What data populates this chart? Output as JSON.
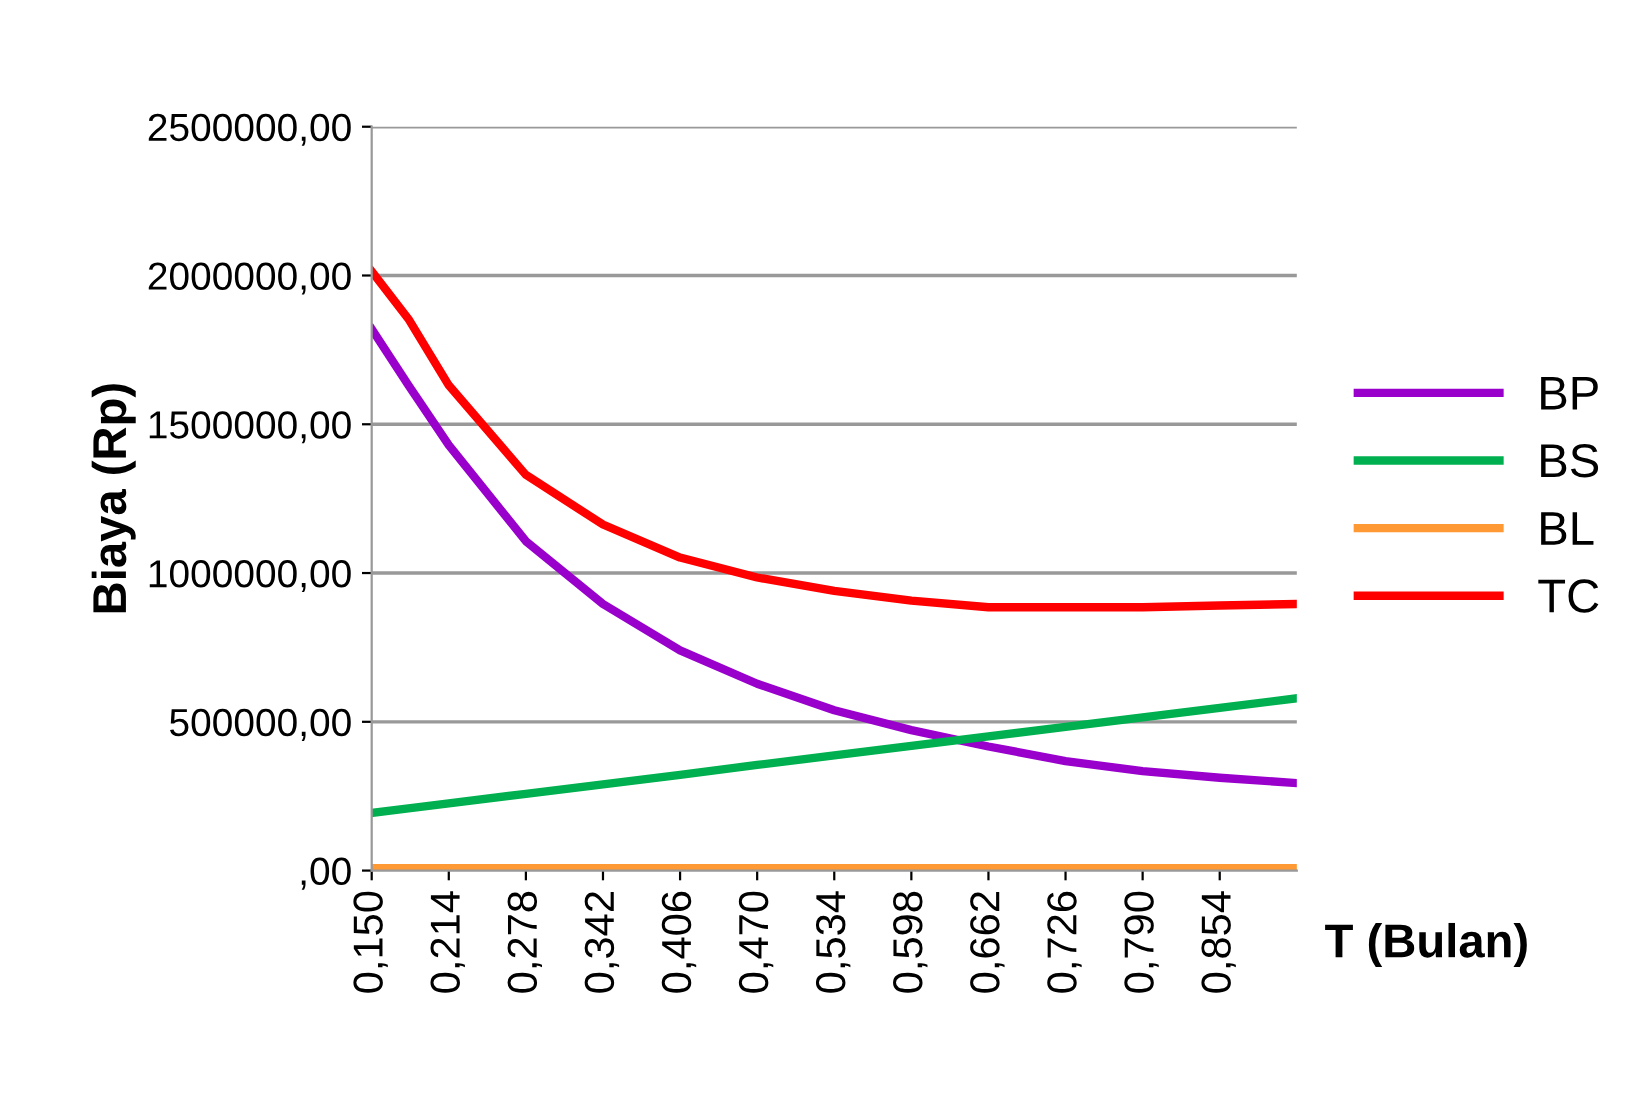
{
  "chart_data": {
    "type": "line",
    "ylabel": "Biaya (Rp)",
    "xlabel": "T (Bulan)",
    "x": [
      0.15,
      0.1805,
      0.214,
      0.278,
      0.342,
      0.406,
      0.47,
      0.534,
      0.598,
      0.662,
      0.726,
      0.79,
      0.854,
      0.918
    ],
    "series": [
      {
        "name": "BP",
        "color": "#9900cc",
        "values": [
          1820000,
          1631000,
          1430000,
          1107000,
          896000,
          740000,
          628000,
          539000,
          472000,
          417000,
          368000,
          334000,
          312000,
          294000
        ]
      },
      {
        "name": "BS",
        "color": "#00b050",
        "values": [
          194000,
          209000,
          226000,
          258000,
          290000,
          322000,
          355000,
          387000,
          419000,
          451000,
          483000,
          515000,
          547000,
          579000
        ]
      },
      {
        "name": "BL",
        "color": "#ff9933",
        "values": [
          8000,
          8000,
          8000,
          8000,
          8000,
          8000,
          8000,
          8000,
          8000,
          8000,
          8000,
          8000,
          8000,
          8000
        ]
      },
      {
        "name": "TC",
        "color": "#ff0000",
        "values": [
          2014000,
          1854000,
          1631000,
          1330000,
          1163000,
          1052000,
          985000,
          940000,
          907000,
          885000,
          885000,
          885000,
          891000,
          896000
        ]
      }
    ],
    "xlim": [
      0.15,
      0.918
    ],
    "xticks": [
      {
        "value": 0.15,
        "label": "0,150"
      },
      {
        "value": 0.214,
        "label": "0,214"
      },
      {
        "value": 0.278,
        "label": "0,278"
      },
      {
        "value": 0.342,
        "label": "0,342"
      },
      {
        "value": 0.406,
        "label": "0,406"
      },
      {
        "value": 0.47,
        "label": "0,470"
      },
      {
        "value": 0.534,
        "label": "0,534"
      },
      {
        "value": 0.598,
        "label": "0,598"
      },
      {
        "value": 0.662,
        "label": "0,662"
      },
      {
        "value": 0.726,
        "label": "0,726"
      },
      {
        "value": 0.79,
        "label": "0,790"
      },
      {
        "value": 0.854,
        "label": "0,854"
      }
    ],
    "ylim": [
      0,
      2500000
    ],
    "yticks": [
      {
        "value": 0,
        "label": ",00"
      },
      {
        "value": 500000,
        "label": "500000,00"
      },
      {
        "value": 1000000,
        "label": "1000000,00"
      },
      {
        "value": 1500000,
        "label": "1500000,00"
      },
      {
        "value": 2000000,
        "label": "2000000,00"
      },
      {
        "value": 2500000,
        "label": "2500000,00"
      }
    ],
    "grid": "y",
    "legend": "right",
    "marker": "none",
    "line_style": "solid"
  }
}
